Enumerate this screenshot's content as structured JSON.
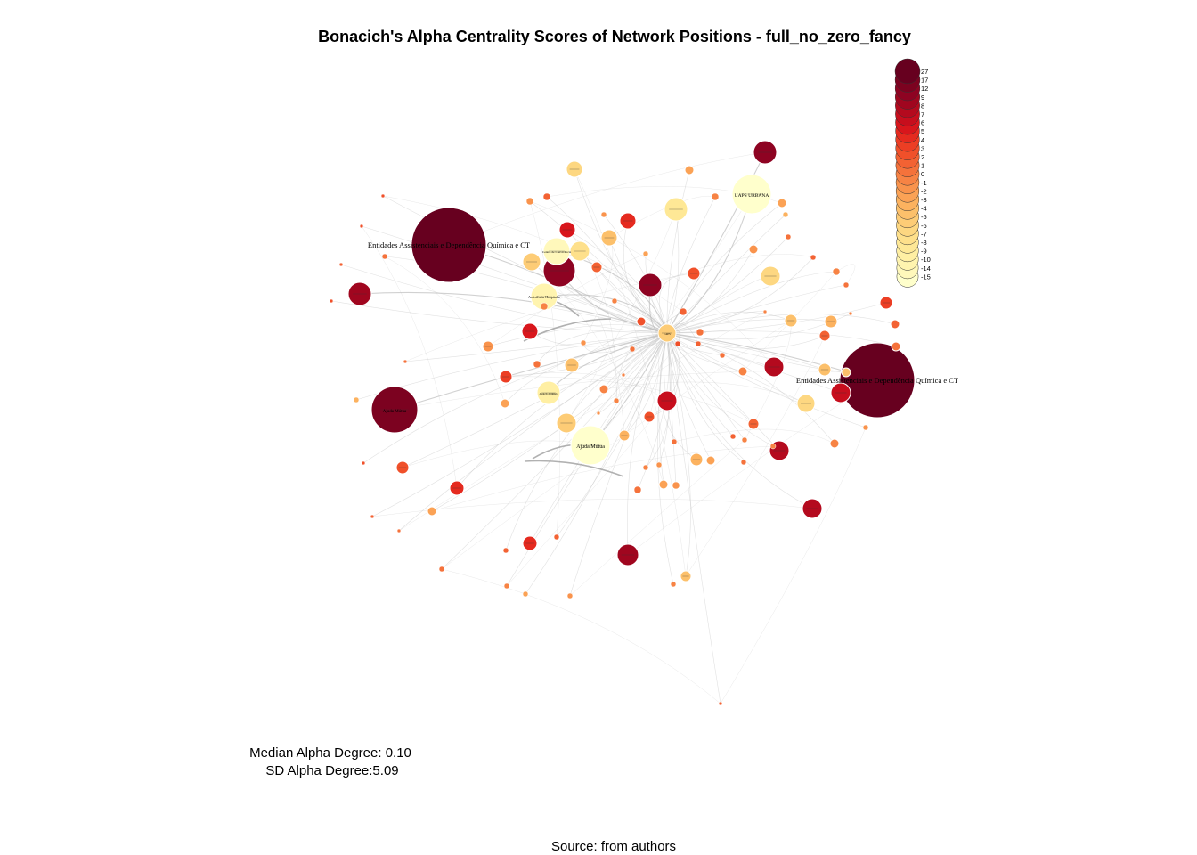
{
  "title": "Bonacich's Alpha Centrality Scores of Network Positions - full_no_zero_fancy",
  "stats": {
    "median": "Median Alpha Degree: 0.10",
    "sd": "SD Alpha Degree:5.09"
  },
  "source": "Source: from authors",
  "legend": {
    "labels": [
      "27",
      "17",
      "12",
      "9",
      "8",
      "7",
      "6",
      "5",
      "4",
      "3",
      "2",
      "1",
      "0",
      "-1",
      "-2",
      "-3",
      "-4",
      "-5",
      "-6",
      "-7",
      "-8",
      "-9",
      "-10",
      "-14",
      "-15"
    ],
    "colors": [
      "#67001f",
      "#7c0220",
      "#8e0322",
      "#a0061f",
      "#b40a1e",
      "#c70e1d",
      "#d8161c",
      "#e52a1f",
      "#ec3e24",
      "#f0502a",
      "#f36233",
      "#f5723b",
      "#f78344",
      "#f9934c",
      "#fba255",
      "#fcb25f",
      "#fcc06b",
      "#fdcc76",
      "#fdd781",
      "#fee08b",
      "#fee896",
      "#ffefa3",
      "#fff4af",
      "#fff8bb",
      "#ffffcc"
    ]
  },
  "colors": {
    "edge": "#bdbdbd",
    "node_stroke": "#ffffff",
    "legend_stroke": "#333333"
  },
  "nodes": [
    {
      "label": "Entidades Assistenciais e Dependência Química e CT",
      "score": 27
    },
    {
      "label": "Entidades Assistenciais e Dependência Química e CT",
      "score": 27
    },
    {
      "label": "Ajuda Mútua",
      "score": 17
    },
    {
      "label": "Ajuda Mútua",
      "score": -15
    },
    {
      "label": "UAPS URBANA",
      "score": -15
    },
    {
      "label": "Assistência Hospitalar",
      "score": -10
    },
    {
      "label": "Centro de Convivência",
      "score": -10
    },
    {
      "label": "Atenção Primária",
      "score": -8
    },
    {
      "label": "CAPS",
      "score": -4
    }
  ]
}
